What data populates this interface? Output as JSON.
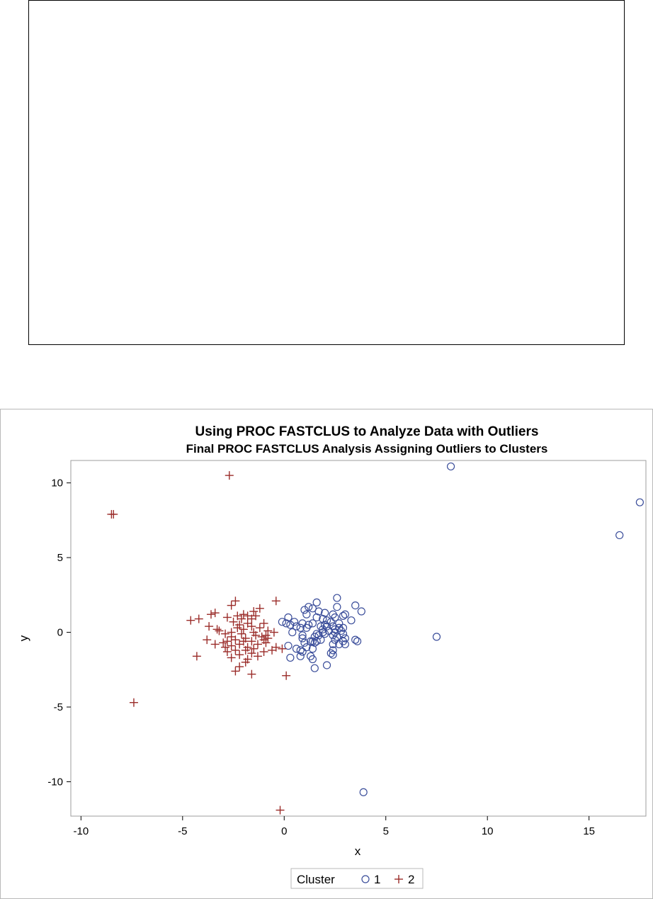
{
  "chart_data": {
    "type": "scatter",
    "title": "Using PROC FASTCLUS to Analyze Data with Outliers",
    "subtitle": "Final PROC FASTCLUS Analysis Assigning Outliers to Clusters",
    "xlabel": "x",
    "ylabel": "y",
    "xlim": [
      -10.5,
      17.8
    ],
    "ylim": [
      -12.3,
      11.5
    ],
    "xticks": [
      -10,
      -5,
      0,
      5,
      10,
      15
    ],
    "yticks": [
      -10,
      -5,
      0,
      5,
      10
    ],
    "legend": {
      "title": "Cluster",
      "placement": "bottom-center",
      "entries": [
        {
          "label": "1",
          "marker": "circle",
          "color": "#3a4d9a"
        },
        {
          "label": "2",
          "marker": "plus",
          "color": "#9b2d2a"
        }
      ]
    },
    "series": [
      {
        "name": "1",
        "marker": "circle",
        "color": "#3a4d9a",
        "points": [
          [
            8.2,
            11.1
          ],
          [
            17.5,
            8.7
          ],
          [
            16.5,
            6.5
          ],
          [
            7.5,
            -0.3
          ],
          [
            3.9,
            -10.7
          ],
          [
            2.6,
            2.3
          ],
          [
            1.6,
            2.0
          ],
          [
            3.5,
            1.8
          ],
          [
            2.6,
            1.7
          ],
          [
            1.2,
            1.7
          ],
          [
            1.4,
            1.6
          ],
          [
            1.0,
            1.5
          ],
          [
            1.7,
            1.4
          ],
          [
            3.8,
            1.4
          ],
          [
            2.0,
            1.3
          ],
          [
            2.4,
            1.2
          ],
          [
            1.1,
            1.2
          ],
          [
            3.0,
            1.2
          ],
          [
            2.9,
            1.1
          ],
          [
            0.2,
            1.0
          ],
          [
            1.6,
            1.0
          ],
          [
            2.5,
            1.0
          ],
          [
            1.9,
            0.9
          ],
          [
            2.1,
            0.8
          ],
          [
            3.3,
            0.8
          ],
          [
            2.3,
            0.7
          ],
          [
            -0.1,
            0.7
          ],
          [
            0.5,
            0.7
          ],
          [
            0.9,
            0.6
          ],
          [
            1.4,
            0.6
          ],
          [
            2.7,
            0.6
          ],
          [
            0.1,
            0.6
          ],
          [
            2.0,
            0.5
          ],
          [
            0.3,
            0.5
          ],
          [
            1.2,
            0.5
          ],
          [
            1.8,
            0.4
          ],
          [
            2.4,
            0.4
          ],
          [
            0.6,
            0.4
          ],
          [
            0.8,
            0.3
          ],
          [
            2.7,
            0.3
          ],
          [
            1.1,
            0.3
          ],
          [
            1.9,
            0.2
          ],
          [
            2.5,
            0.2
          ],
          [
            2.2,
            0.1
          ],
          [
            2.8,
            0.1
          ],
          [
            0.4,
            0.0
          ],
          [
            2.5,
            0.0
          ],
          [
            1.6,
            -0.1
          ],
          [
            2.0,
            -0.1
          ],
          [
            2.9,
            -0.1
          ],
          [
            0.9,
            -0.2
          ],
          [
            1.7,
            -0.2
          ],
          [
            2.4,
            -0.2
          ],
          [
            1.5,
            -0.3
          ],
          [
            2.6,
            -0.3
          ],
          [
            3.0,
            -0.4
          ],
          [
            0.9,
            -0.4
          ],
          [
            2.5,
            -0.5
          ],
          [
            1.8,
            -0.5
          ],
          [
            3.5,
            -0.5
          ],
          [
            1.3,
            -0.6
          ],
          [
            2.9,
            -0.6
          ],
          [
            1.4,
            -0.6
          ],
          [
            1.6,
            -0.6
          ],
          [
            1.5,
            -0.7
          ],
          [
            3.0,
            -0.8
          ],
          [
            2.4,
            -0.8
          ],
          [
            0.2,
            -0.9
          ],
          [
            1.1,
            -1.0
          ],
          [
            1.4,
            -1.1
          ],
          [
            0.6,
            -1.1
          ],
          [
            2.4,
            -1.2
          ],
          [
            0.8,
            -1.2
          ],
          [
            0.9,
            -1.3
          ],
          [
            2.3,
            -1.4
          ],
          [
            2.4,
            -1.5
          ],
          [
            0.8,
            -1.6
          ],
          [
            1.3,
            -1.6
          ],
          [
            0.3,
            -1.7
          ],
          [
            1.4,
            -1.8
          ],
          [
            2.1,
            -2.2
          ],
          [
            1.5,
            -2.4
          ],
          [
            3.6,
            -0.6
          ],
          [
            1.0,
            -0.7
          ],
          [
            2.7,
            -0.8
          ],
          [
            1.9,
            0.0
          ],
          [
            2.1,
            0.4
          ],
          [
            2.9,
            0.3
          ]
        ]
      },
      {
        "name": "2",
        "marker": "plus",
        "color": "#9b2d2a",
        "points": [
          [
            -2.7,
            10.5
          ],
          [
            -8.5,
            7.9
          ],
          [
            -8.4,
            7.9
          ],
          [
            -7.4,
            -4.7
          ],
          [
            -0.2,
            -11.9
          ],
          [
            -0.4,
            2.1
          ],
          [
            -2.4,
            2.1
          ],
          [
            -2.6,
            1.8
          ],
          [
            -1.2,
            1.6
          ],
          [
            -1.5,
            1.4
          ],
          [
            -3.6,
            1.2
          ],
          [
            -3.4,
            1.3
          ],
          [
            -2.0,
            1.2
          ],
          [
            -2.3,
            1.1
          ],
          [
            -1.8,
            1.1
          ],
          [
            -1.4,
            1.1
          ],
          [
            -2.8,
            1.0
          ],
          [
            -4.2,
            0.9
          ],
          [
            -4.6,
            0.8
          ],
          [
            -2.1,
            0.9
          ],
          [
            -1.6,
            0.9
          ],
          [
            -2.5,
            0.7
          ],
          [
            -1.8,
            0.6
          ],
          [
            -1.0,
            0.6
          ],
          [
            -2.2,
            0.5
          ],
          [
            -3.7,
            0.4
          ],
          [
            -1.6,
            0.4
          ],
          [
            -2.3,
            0.3
          ],
          [
            -1.2,
            0.3
          ],
          [
            -3.3,
            0.2
          ],
          [
            -2.0,
            0.2
          ],
          [
            -0.8,
            0.1
          ],
          [
            -3.2,
            0.1
          ],
          [
            -2.6,
            0.0
          ],
          [
            -1.5,
            0.0
          ],
          [
            -0.5,
            0.0
          ],
          [
            -2.9,
            -0.1
          ],
          [
            -2.1,
            -0.1
          ],
          [
            -0.9,
            -0.2
          ],
          [
            -1.4,
            -0.2
          ],
          [
            -2.6,
            -0.3
          ],
          [
            -1.9,
            -0.4
          ],
          [
            -0.8,
            -0.4
          ],
          [
            -3.8,
            -0.5
          ],
          [
            -2.4,
            -0.5
          ],
          [
            -1.0,
            -0.5
          ],
          [
            -2.8,
            -0.6
          ],
          [
            -1.6,
            -0.6
          ],
          [
            -0.9,
            -0.7
          ],
          [
            -3.0,
            -0.7
          ],
          [
            -2.2,
            -0.8
          ],
          [
            -1.3,
            -0.8
          ],
          [
            -3.4,
            -0.8
          ],
          [
            -2.6,
            -0.9
          ],
          [
            -1.8,
            -1.0
          ],
          [
            -2.9,
            -1.0
          ],
          [
            -0.4,
            -1.0
          ],
          [
            -1.5,
            -1.1
          ],
          [
            -0.1,
            -1.1
          ],
          [
            -2.4,
            -1.2
          ],
          [
            -1.9,
            -1.2
          ],
          [
            -2.8,
            -1.3
          ],
          [
            -1.0,
            -1.3
          ],
          [
            -1.6,
            -1.4
          ],
          [
            -2.2,
            -1.5
          ],
          [
            -4.3,
            -1.6
          ],
          [
            -1.3,
            -1.6
          ],
          [
            -2.6,
            -1.7
          ],
          [
            -1.8,
            -1.8
          ],
          [
            -1.9,
            -2.0
          ],
          [
            -2.2,
            -2.3
          ],
          [
            -2.4,
            -2.6
          ],
          [
            -1.6,
            -2.8
          ],
          [
            0.1,
            -2.9
          ],
          [
            -1.1,
            -0.3
          ],
          [
            -2.0,
            -0.6
          ],
          [
            -0.6,
            -1.2
          ]
        ]
      }
    ]
  }
}
